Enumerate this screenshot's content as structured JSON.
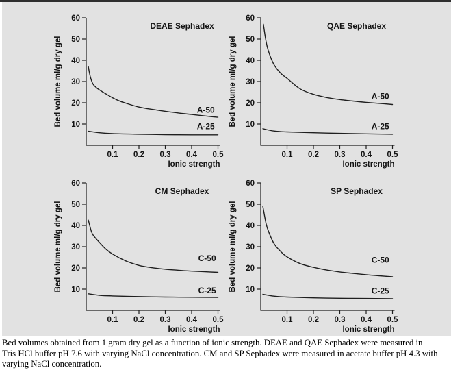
{
  "page": {
    "panel_background": "#e2e2e2",
    "top_rule_color": "#2e2e2e",
    "line_color": "#1f1f1f",
    "text_color": "#141414"
  },
  "caption": {
    "lines": [
      " Bed volumes obtained from 1 gram dry gel as a function of ionic strength. DEAE and QAE Sephadex were measured in",
      "Tris HCl buffer pH 7.6 with varying NaCl concentration. CM and SP Sephadex were measured in acetate buffer pH 4.3 with",
      "varying NaCl concentration."
    ]
  },
  "chart_data": [
    {
      "type": "line",
      "title": "DEAE Sephadex",
      "xlabel": "Ionic strength",
      "ylabel": "Bed volume ml/g dry gel",
      "xlim": [
        0,
        0.5
      ],
      "ylim": [
        0,
        60
      ],
      "x_ticks": [
        0.1,
        0.2,
        0.3,
        0.4,
        0.5
      ],
      "x_tick_labels": [
        "0.1",
        "0.2",
        "0.3",
        "0.4",
        "0.5"
      ],
      "y_ticks": [
        10,
        20,
        30,
        40,
        50,
        60
      ],
      "grid": false,
      "series": [
        {
          "name": "A-50",
          "label_anchor": {
            "x": 0.42,
            "y": 15.3
          },
          "points": [
            [
              0.008,
              37
            ],
            [
              0.015,
              32.5
            ],
            [
              0.025,
              29
            ],
            [
              0.04,
              27
            ],
            [
              0.06,
              25.3
            ],
            [
              0.08,
              23.8
            ],
            [
              0.1,
              22.4
            ],
            [
              0.125,
              20.9
            ],
            [
              0.15,
              19.8
            ],
            [
              0.2,
              18
            ],
            [
              0.25,
              16.9
            ],
            [
              0.3,
              16
            ],
            [
              0.35,
              15.2
            ],
            [
              0.4,
              14.5
            ],
            [
              0.45,
              13.8
            ],
            [
              0.5,
              13.2
            ]
          ]
        },
        {
          "name": "A-25",
          "label_anchor": {
            "x": 0.42,
            "y": 7.6
          },
          "points": [
            [
              0.008,
              6.6
            ],
            [
              0.05,
              5.9
            ],
            [
              0.1,
              5.5
            ],
            [
              0.2,
              5.2
            ],
            [
              0.3,
              5.0
            ],
            [
              0.4,
              4.9
            ],
            [
              0.5,
              4.9
            ]
          ]
        }
      ]
    },
    {
      "type": "line",
      "title": "QAE Sephadex",
      "xlabel": "Ionic strength",
      "ylabel": "Bed volume ml/g dry gel",
      "xlim": [
        0,
        0.5
      ],
      "ylim": [
        0,
        60
      ],
      "x_ticks": [
        0.1,
        0.2,
        0.3,
        0.4,
        0.5
      ],
      "x_tick_labels": [
        "0.1",
        "0.2",
        "0.3",
        "0.4",
        "0.5"
      ],
      "y_ticks": [
        10,
        20,
        30,
        40,
        50,
        60
      ],
      "grid": false,
      "series": [
        {
          "name": "A-50",
          "label_anchor": {
            "x": 0.42,
            "y": 21.8
          },
          "points": [
            [
              0.01,
              57
            ],
            [
              0.02,
              49
            ],
            [
              0.03,
              44
            ],
            [
              0.05,
              38
            ],
            [
              0.075,
              34
            ],
            [
              0.1,
              31.5
            ],
            [
              0.15,
              26.5
            ],
            [
              0.2,
              24
            ],
            [
              0.25,
              22.5
            ],
            [
              0.3,
              21.5
            ],
            [
              0.35,
              20.8
            ],
            [
              0.4,
              20.2
            ],
            [
              0.45,
              19.7
            ],
            [
              0.5,
              19.2
            ]
          ]
        },
        {
          "name": "A-25",
          "label_anchor": {
            "x": 0.42,
            "y": 7.6
          },
          "points": [
            [
              0.008,
              7.8
            ],
            [
              0.05,
              6.7
            ],
            [
              0.1,
              6.3
            ],
            [
              0.2,
              5.9
            ],
            [
              0.3,
              5.6
            ],
            [
              0.4,
              5.4
            ],
            [
              0.5,
              5.2
            ]
          ]
        }
      ]
    },
    {
      "type": "line",
      "title": "CM Sephadex",
      "xlabel": "Ionic strength",
      "ylabel": "Bed volume ml/g dry gel",
      "xlim": [
        0,
        0.5
      ],
      "ylim": [
        0,
        60
      ],
      "x_ticks": [
        0.1,
        0.2,
        0.3,
        0.4,
        0.5
      ],
      "x_tick_labels": [
        "0.1",
        "0.2",
        "0.3",
        "0.4",
        "0.5"
      ],
      "y_ticks": [
        10,
        20,
        30,
        40,
        50,
        60
      ],
      "grid": false,
      "series": [
        {
          "name": "C-50",
          "label_anchor": {
            "x": 0.425,
            "y": 23.2
          },
          "points": [
            [
              0.008,
              42.5
            ],
            [
              0.02,
              37
            ],
            [
              0.03,
              34.8
            ],
            [
              0.05,
              32
            ],
            [
              0.075,
              28.8
            ],
            [
              0.1,
              26.5
            ],
            [
              0.15,
              23.3
            ],
            [
              0.2,
              21.2
            ],
            [
              0.25,
              20.1
            ],
            [
              0.3,
              19.4
            ],
            [
              0.35,
              18.9
            ],
            [
              0.4,
              18.5
            ],
            [
              0.45,
              18.2
            ],
            [
              0.5,
              17.9
            ]
          ]
        },
        {
          "name": "C-25",
          "label_anchor": {
            "x": 0.425,
            "y": 8.1
          },
          "points": [
            [
              0.008,
              7.8
            ],
            [
              0.05,
              7.1
            ],
            [
              0.1,
              6.8
            ],
            [
              0.2,
              6.5
            ],
            [
              0.3,
              6.3
            ],
            [
              0.4,
              6.2
            ],
            [
              0.5,
              6.1
            ]
          ]
        }
      ]
    },
    {
      "type": "line",
      "title": "SP Sephadex",
      "xlabel": "Ionic strength",
      "ylabel": "Bed volume ml/g dry gel",
      "xlim": [
        0,
        0.5
      ],
      "ylim": [
        0,
        60
      ],
      "x_ticks": [
        0.1,
        0.2,
        0.3,
        0.4,
        0.5
      ],
      "x_tick_labels": [
        "0.1",
        "0.2",
        "0.3",
        "0.4",
        "0.5"
      ],
      "y_ticks": [
        10,
        20,
        30,
        40,
        50,
        60
      ],
      "grid": false,
      "series": [
        {
          "name": "C-50",
          "label_anchor": {
            "x": 0.42,
            "y": 22.4
          },
          "points": [
            [
              0.008,
              49
            ],
            [
              0.02,
              41
            ],
            [
              0.03,
              37
            ],
            [
              0.05,
              31.5
            ],
            [
              0.075,
              27.8
            ],
            [
              0.1,
              25.2
            ],
            [
              0.15,
              22
            ],
            [
              0.2,
              20.3
            ],
            [
              0.25,
              19
            ],
            [
              0.3,
              18.1
            ],
            [
              0.35,
              17.4
            ],
            [
              0.4,
              16.8
            ],
            [
              0.45,
              16.3
            ],
            [
              0.5,
              15.8
            ]
          ]
        },
        {
          "name": "C-25",
          "label_anchor": {
            "x": 0.42,
            "y": 7.9
          },
          "points": [
            [
              0.008,
              7.6
            ],
            [
              0.05,
              6.7
            ],
            [
              0.1,
              6.3
            ],
            [
              0.2,
              5.9
            ],
            [
              0.3,
              5.7
            ],
            [
              0.4,
              5.6
            ],
            [
              0.5,
              5.5
            ]
          ]
        }
      ]
    }
  ]
}
